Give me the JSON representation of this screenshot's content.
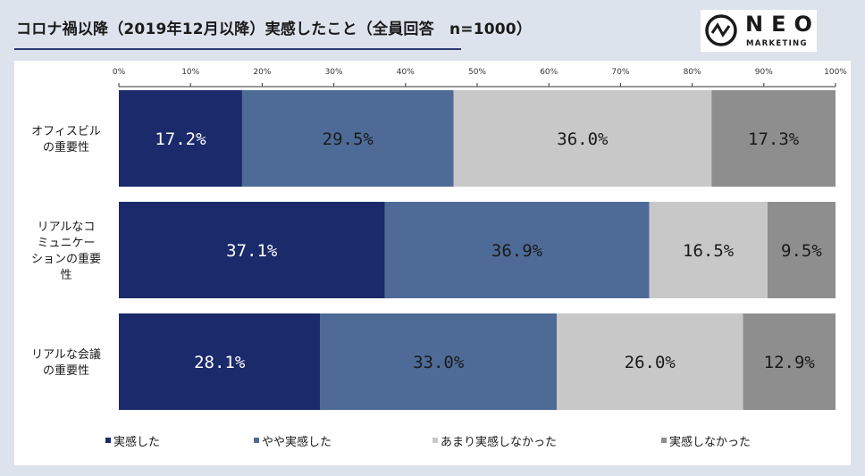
{
  "header": {
    "title": "コロナ禍以降（2019年12月以降）実感したこと（全員回答　n=1000）"
  },
  "logo": {
    "brand": "NEO",
    "sub": "MARKETING"
  },
  "colors": {
    "series": [
      "#1b2a6b",
      "#4e6b97",
      "#c8c8c8",
      "#8e8e8e"
    ],
    "label_text": [
      "#ffffff",
      "#1a1a1a",
      "#1a1a1a",
      "#1a1a1a"
    ],
    "background": "#dde3ec",
    "panel": "#ffffff"
  },
  "chart_data": {
    "type": "bar",
    "orientation": "horizontal",
    "stacked": "100%",
    "categories": [
      [
        "オフィスビル",
        "の重要性"
      ],
      [
        "リアルなコ",
        "ミュニケー",
        "ションの重要",
        "性"
      ],
      [
        "リアルな会議",
        "の重要性"
      ]
    ],
    "series": [
      {
        "name": "実感した",
        "values": [
          17.2,
          37.1,
          28.1
        ]
      },
      {
        "name": "やや実感した",
        "values": [
          29.5,
          36.9,
          33.0
        ]
      },
      {
        "name": "あまり実感しなかった",
        "values": [
          36.0,
          16.5,
          26.0
        ]
      },
      {
        "name": "実感しなかった",
        "values": [
          17.3,
          9.5,
          12.9
        ]
      }
    ],
    "xlim": [
      0,
      100
    ],
    "xticks": [
      "0%",
      "10%",
      "20%",
      "30%",
      "40%",
      "50%",
      "60%",
      "70%",
      "80%",
      "90%",
      "100%"
    ],
    "legend_position": "bottom",
    "grid": false
  }
}
